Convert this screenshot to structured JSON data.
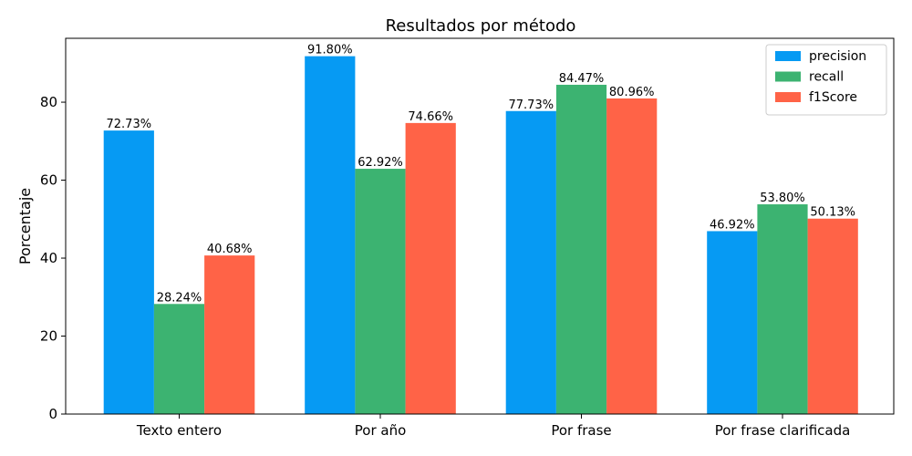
{
  "chart_data": {
    "type": "bar",
    "title": "Resultados por método",
    "xlabel": "",
    "ylabel": "Porcentaje",
    "categories": [
      "Texto entero",
      "Por año",
      "Por frase",
      "Por frase clarificada"
    ],
    "series": [
      {
        "name": "precision",
        "color": "#069AF3",
        "values": [
          72.73,
          91.8,
          77.73,
          46.92
        ],
        "labels": [
          "72.73%",
          "91.80%",
          "77.73%",
          "46.92%"
        ]
      },
      {
        "name": "recall",
        "color": "#3CB371",
        "values": [
          28.24,
          62.92,
          84.47,
          53.8
        ],
        "labels": [
          "28.24%",
          "62.92%",
          "84.47%",
          "53.80%"
        ]
      },
      {
        "name": "f1Score",
        "color": "#FF6347",
        "values": [
          40.68,
          74.66,
          80.96,
          50.13
        ],
        "labels": [
          "40.68%",
          "74.66%",
          "80.96%",
          "50.13%"
        ]
      }
    ],
    "yticks": [
      0,
      20,
      40,
      60,
      80
    ],
    "ylim": [
      0,
      96.39
    ],
    "grid": false,
    "legend_position": "top-right"
  }
}
